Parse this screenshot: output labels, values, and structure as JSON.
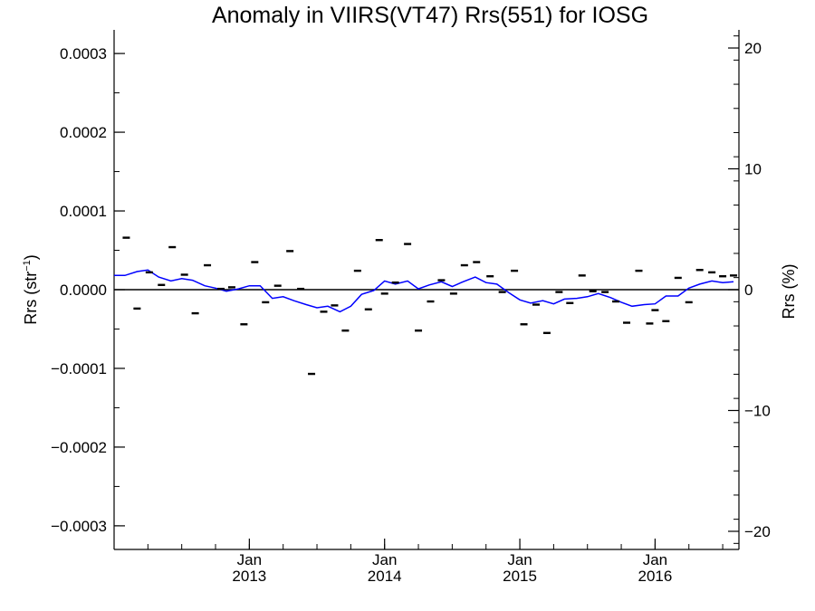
{
  "chart_data": {
    "type": "scatter",
    "title": "Anomaly in VIIRS(VT47) Rrs(551) for IOSG",
    "ylabel_left": {
      "main": "Rrs (str",
      "sup": "−1",
      "end": ")"
    },
    "ylabel_right": "Rrs (%)",
    "x_ticks": [
      {
        "top": "Jan",
        "bottom": "2013",
        "x": 2013.0
      },
      {
        "top": "Jan",
        "bottom": "2014",
        "x": 2014.0
      },
      {
        "top": "Jan",
        "bottom": "2015",
        "x": 2015.0
      },
      {
        "top": "Jan",
        "bottom": "2016",
        "x": 2016.0
      }
    ],
    "xlim": [
      2012.0,
      2016.62
    ],
    "ylim_left": [
      -0.00033,
      0.00033
    ],
    "ylim_right": [
      -21.5,
      21.5
    ],
    "y_left_ticks": [
      {
        "value": 0.0003,
        "label": "0.0003"
      },
      {
        "value": 0.0002,
        "label": "0.0002"
      },
      {
        "value": 0.0001,
        "label": "0.0001"
      },
      {
        "value": 0.0,
        "label": "0.0000"
      },
      {
        "value": -0.0001,
        "label": "−0.0001"
      },
      {
        "value": -0.0002,
        "label": "−0.0002"
      },
      {
        "value": -0.0003,
        "label": "−0.0003"
      }
    ],
    "y_right_ticks": [
      {
        "value": 20,
        "label": "20"
      },
      {
        "value": 10,
        "label": "10"
      },
      {
        "value": 0,
        "label": "0"
      },
      {
        "value": -10,
        "label": "−10"
      },
      {
        "value": -20,
        "label": "−20"
      }
    ],
    "zero_line": 0,
    "series": [
      {
        "marker": "dash",
        "color": "#000000",
        "points": [
          [
            2012.09,
            6.6e-05
          ],
          [
            2012.17,
            -2.4e-05
          ],
          [
            2012.26,
            2.2e-05
          ],
          [
            2012.35,
            6e-06
          ],
          [
            2012.43,
            5.4e-05
          ],
          [
            2012.52,
            1.9e-05
          ],
          [
            2012.6,
            -3e-05
          ],
          [
            2012.69,
            3.1e-05
          ],
          [
            2012.79,
            1e-06
          ],
          [
            2012.87,
            3e-06
          ],
          [
            2012.96,
            -4.4e-05
          ],
          [
            2013.04,
            3.5e-05
          ],
          [
            2013.12,
            -1.6e-05
          ],
          [
            2013.21,
            5e-06
          ],
          [
            2013.3,
            4.9e-05
          ],
          [
            2013.38,
            1e-06
          ],
          [
            2013.46,
            -0.000107
          ],
          [
            2013.55,
            -2.8e-05
          ],
          [
            2013.63,
            -2e-05
          ],
          [
            2013.71,
            -5.2e-05
          ],
          [
            2013.8,
            2.4e-05
          ],
          [
            2013.88,
            -2.5e-05
          ],
          [
            2013.96,
            6.3e-05
          ],
          [
            2014.0,
            -5e-06
          ],
          [
            2014.08,
            9e-06
          ],
          [
            2014.17,
            5.8e-05
          ],
          [
            2014.25,
            -5.2e-05
          ],
          [
            2014.34,
            -1.5e-05
          ],
          [
            2014.42,
            1.2e-05
          ],
          [
            2014.51,
            -5e-06
          ],
          [
            2014.59,
            3.1e-05
          ],
          [
            2014.68,
            3.5e-05
          ],
          [
            2014.78,
            1.7e-05
          ],
          [
            2014.87,
            -3e-06
          ],
          [
            2014.96,
            2.4e-05
          ],
          [
            2015.03,
            -4.4e-05
          ],
          [
            2015.12,
            -1.9e-05
          ],
          [
            2015.2,
            -5.5e-05
          ],
          [
            2015.29,
            -3e-06
          ],
          [
            2015.37,
            -1.7e-05
          ],
          [
            2015.46,
            1.8e-05
          ],
          [
            2015.54,
            -2e-06
          ],
          [
            2015.63,
            -3e-06
          ],
          [
            2015.71,
            -1.5e-05
          ],
          [
            2015.79,
            -4.2e-05
          ],
          [
            2015.88,
            2.4e-05
          ],
          [
            2015.96,
            -4.3e-05
          ],
          [
            2016.0,
            -2.6e-05
          ],
          [
            2016.08,
            -4e-05
          ],
          [
            2016.17,
            1.5e-05
          ],
          [
            2016.25,
            -1.6e-05
          ],
          [
            2016.33,
            2.5e-05
          ],
          [
            2016.42,
            2.2e-05
          ],
          [
            2016.5,
            1.7e-05
          ],
          [
            2016.58,
            1.8e-05
          ]
        ]
      },
      {
        "marker": "line",
        "color": "#0000ff",
        "points": [
          [
            2012.0,
            1.8e-05
          ],
          [
            2012.08,
            1.8e-05
          ],
          [
            2012.17,
            2.3e-05
          ],
          [
            2012.25,
            2.5e-05
          ],
          [
            2012.33,
            1.6e-05
          ],
          [
            2012.42,
            1.1e-05
          ],
          [
            2012.5,
            1.4e-05
          ],
          [
            2012.58,
            1.2e-05
          ],
          [
            2012.67,
            5e-06
          ],
          [
            2012.75,
            2e-06
          ],
          [
            2012.83,
            -2e-06
          ],
          [
            2012.92,
            1e-06
          ],
          [
            2013.0,
            5e-06
          ],
          [
            2013.08,
            5e-06
          ],
          [
            2013.17,
            -1.1e-05
          ],
          [
            2013.25,
            -9e-06
          ],
          [
            2013.33,
            -1.4e-05
          ],
          [
            2013.42,
            -1.9e-05
          ],
          [
            2013.5,
            -2.3e-05
          ],
          [
            2013.58,
            -2.1e-05
          ],
          [
            2013.67,
            -2.8e-05
          ],
          [
            2013.75,
            -2.1e-05
          ],
          [
            2013.83,
            -6e-06
          ],
          [
            2013.92,
            -1e-06
          ],
          [
            2014.0,
            1.1e-05
          ],
          [
            2014.08,
            7e-06
          ],
          [
            2014.17,
            1.1e-05
          ],
          [
            2014.25,
            1e-06
          ],
          [
            2014.33,
            6e-06
          ],
          [
            2014.42,
            1e-05
          ],
          [
            2014.5,
            4e-06
          ],
          [
            2014.58,
            1e-05
          ],
          [
            2014.67,
            1.6e-05
          ],
          [
            2014.75,
            9e-06
          ],
          [
            2014.83,
            7e-06
          ],
          [
            2014.92,
            -4e-06
          ],
          [
            2015.0,
            -1.3e-05
          ],
          [
            2015.08,
            -1.7e-05
          ],
          [
            2015.17,
            -1.4e-05
          ],
          [
            2015.25,
            -1.8e-05
          ],
          [
            2015.33,
            -1.2e-05
          ],
          [
            2015.42,
            -1.1e-05
          ],
          [
            2015.5,
            -9e-06
          ],
          [
            2015.58,
            -5e-06
          ],
          [
            2015.67,
            -1e-05
          ],
          [
            2015.75,
            -1.6e-05
          ],
          [
            2015.83,
            -2.1e-05
          ],
          [
            2015.92,
            -1.9e-05
          ],
          [
            2016.0,
            -1.8e-05
          ],
          [
            2016.08,
            -8e-06
          ],
          [
            2016.17,
            -8e-06
          ],
          [
            2016.25,
            2e-06
          ],
          [
            2016.33,
            7e-06
          ],
          [
            2016.42,
            1.1e-05
          ],
          [
            2016.5,
            9e-06
          ],
          [
            2016.58,
            1e-05
          ]
        ]
      }
    ]
  }
}
